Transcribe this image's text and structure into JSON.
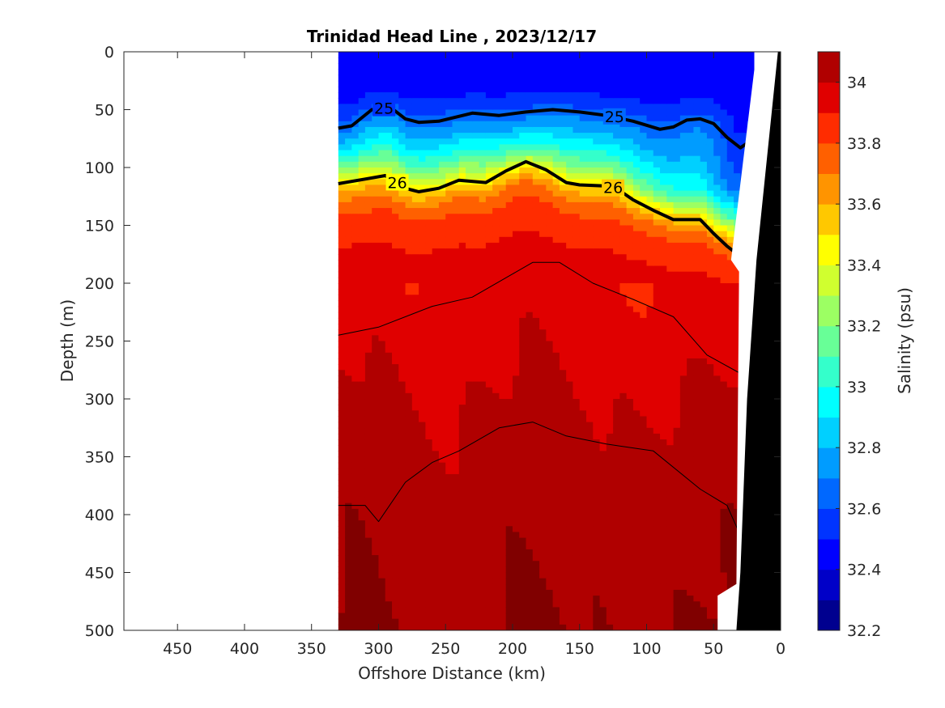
{
  "chart_data": {
    "type": "heatmap",
    "title": "Trinidad Head Line , 2023/12/17",
    "xlabel": "Offshore Distance (km)",
    "ylabel": "Depth (m)",
    "xlim": [
      490,
      0
    ],
    "ylim": [
      500,
      0
    ],
    "x_ticks": [
      450,
      400,
      350,
      300,
      250,
      200,
      150,
      100,
      50,
      0
    ],
    "y_ticks": [
      0,
      50,
      100,
      150,
      200,
      250,
      300,
      350,
      400,
      450,
      500
    ],
    "data_extent_km": [
      330,
      20
    ],
    "colorbar": {
      "label": "Salinity (psu)",
      "range": [
        32.2,
        34.1
      ],
      "ticks": [
        32.2,
        32.4,
        32.6,
        32.8,
        33,
        33.2,
        33.4,
        33.6,
        33.8,
        34
      ],
      "colormap": "jet",
      "levels": [
        32.2,
        32.3,
        32.4,
        32.5,
        32.6,
        32.7,
        32.8,
        32.9,
        33.0,
        33.1,
        33.2,
        33.3,
        33.4,
        33.5,
        33.6,
        33.7,
        33.8,
        33.9,
        34.0,
        34.1
      ],
      "level_colors": [
        "#00008f",
        "#0000c8",
        "#0000ff",
        "#0034ff",
        "#0068ff",
        "#009cff",
        "#00d0ff",
        "#00ffff",
        "#34ffcb",
        "#68ff97",
        "#9cff63",
        "#d0ff2f",
        "#ffff00",
        "#ffc800",
        "#ff9400",
        "#ff6000",
        "#ff2c00",
        "#e00000",
        "#b00000",
        "#800000"
      ]
    },
    "salinity_profile": {
      "depth_m": [
        0,
        40,
        55,
        65,
        75,
        82,
        90,
        98,
        105,
        112,
        120,
        130,
        145,
        170,
        250,
        320,
        420,
        500
      ],
      "salinity_psu": [
        32.45,
        32.5,
        32.62,
        32.72,
        32.82,
        32.92,
        33.02,
        33.15,
        33.28,
        33.42,
        33.56,
        33.7,
        33.82,
        33.9,
        33.97,
        34.02,
        34.07,
        34.1
      ]
    },
    "isopycnals": [
      {
        "label": "25",
        "bold": true,
        "x": [
          330,
          320,
          305,
          290,
          280,
          270,
          255,
          230,
          210,
          190,
          170,
          150,
          130,
          110,
          90,
          80,
          70,
          60,
          50,
          40,
          30,
          20
        ],
        "y": [
          66,
          64,
          50,
          49,
          58,
          61,
          60,
          53,
          55,
          52,
          50,
          52,
          55,
          60,
          67,
          65,
          59,
          58,
          62,
          74,
          83,
          75
        ]
      },
      {
        "label": "26",
        "bold": true,
        "x": [
          330,
          310,
          295,
          280,
          270,
          255,
          240,
          220,
          205,
          190,
          175,
          160,
          150,
          130,
          120,
          110,
          95,
          80,
          60,
          50,
          40,
          30,
          20
        ],
        "y": [
          114,
          110,
          107,
          118,
          121,
          118,
          111,
          113,
          103,
          95,
          102,
          113,
          115,
          116,
          120,
          128,
          137,
          145,
          145,
          157,
          168,
          177,
          182
        ]
      },
      {
        "label": "",
        "bold": false,
        "x": [
          330,
          300,
          260,
          230,
          200,
          185,
          165,
          140,
          110,
          80,
          55,
          30
        ],
        "y": [
          245,
          238,
          220,
          212,
          192,
          182,
          182,
          200,
          214,
          229,
          262,
          278
        ]
      },
      {
        "label": "",
        "bold": false,
        "x": [
          330,
          310,
          300,
          280,
          260,
          240,
          210,
          185,
          160,
          130,
          95,
          60,
          40,
          30
        ],
        "y": [
          392,
          392,
          406,
          372,
          355,
          345,
          325,
          320,
          332,
          339,
          345,
          378,
          392,
          418
        ]
      }
    ]
  }
}
